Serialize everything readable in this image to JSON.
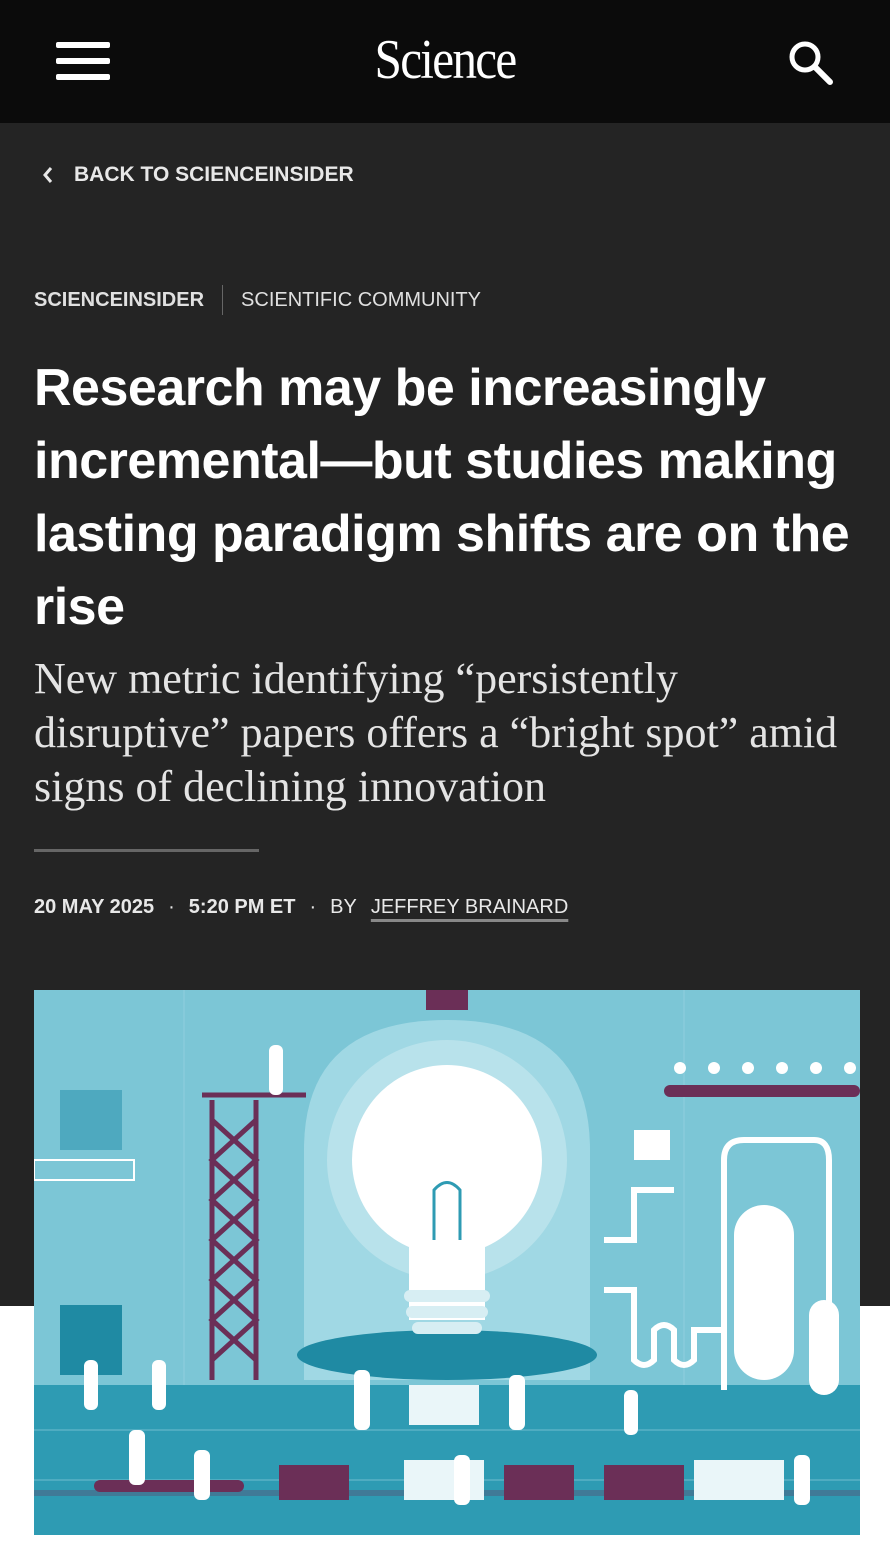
{
  "header": {
    "logo": "Science",
    "menu_icon": "hamburger-icon",
    "search_icon": "search-icon"
  },
  "nav": {
    "back_label": "BACK TO SCIENCEINSIDER"
  },
  "article": {
    "section": "SCIENCEINSIDER",
    "category": "SCIENTIFIC COMMUNITY",
    "title": "Research may be increasingly incremental—but studies making lasting paradigm shifts are on the rise",
    "subtitle": "New metric identifying “persistently disruptive” papers offers a “bright spot” amid signs of declining innovation",
    "date": "20 MAY 2025",
    "time": "5:20 PM ET",
    "by": "BY",
    "author": "JEFFREY BRAINARD"
  },
  "colors": {
    "header_bg": "#0b0b0b",
    "body_bg": "#242424",
    "illustration_bg": "#7cc6d6",
    "accent_purple": "#6b2f57"
  }
}
